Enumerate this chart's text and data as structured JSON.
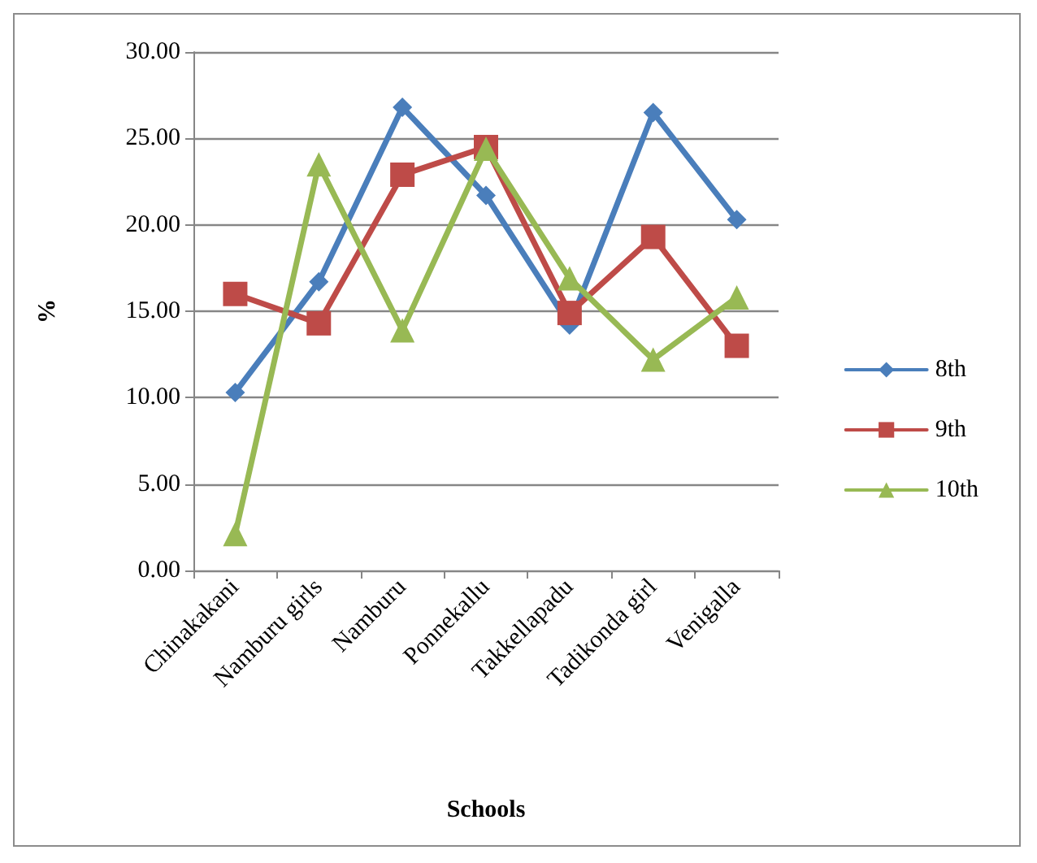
{
  "chart_data": {
    "type": "line",
    "xlabel": "Schools",
    "ylabel": "%",
    "categories": [
      "Chinakakani",
      "Namburu girls",
      "Namburu",
      "Ponnekallu",
      "Takkellapadu",
      "Tadikonda girl",
      "Venigalla"
    ],
    "series": [
      {
        "name": "8th",
        "color": "#4a7ebb",
        "marker": "diamond",
        "values": [
          10.3,
          16.7,
          26.8,
          21.7,
          14.2,
          26.5,
          20.3
        ]
      },
      {
        "name": "9th",
        "color": "#be4b48",
        "marker": "square",
        "values": [
          16.0,
          14.3,
          22.9,
          24.5,
          14.9,
          19.3,
          13.0
        ]
      },
      {
        "name": "10th",
        "color": "#98b954",
        "marker": "triangle",
        "values": [
          2.1,
          23.5,
          13.9,
          24.4,
          16.9,
          12.2,
          15.8
        ]
      }
    ],
    "ylim": [
      0,
      30
    ],
    "yticks": [
      {
        "value": 0,
        "label": "0.00"
      },
      {
        "value": 5,
        "label": "5.00"
      },
      {
        "value": 10,
        "label": "10.00"
      },
      {
        "value": 15,
        "label": "15.00"
      },
      {
        "value": 20,
        "label": "20.00"
      },
      {
        "value": 25,
        "label": "25.00"
      },
      {
        "value": 30,
        "label": "30.00"
      }
    ],
    "grid": "y",
    "legend": "right",
    "line_style": "solid"
  }
}
